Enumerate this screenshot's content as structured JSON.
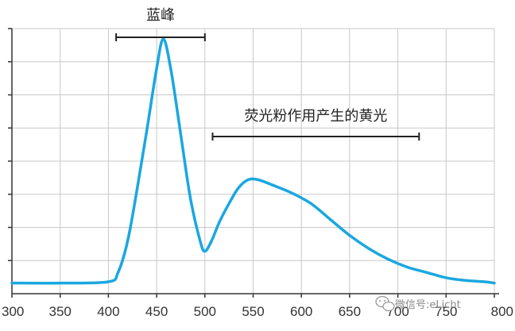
{
  "chart_data": {
    "type": "line",
    "title": "",
    "xlabel": "",
    "ylabel": "",
    "xlim": [
      300,
      800
    ],
    "ylim": [
      0,
      1
    ],
    "x_ticks": [
      "300",
      "350",
      "400",
      "450",
      "500",
      "550",
      "600",
      "650",
      "700",
      "750",
      "800"
    ],
    "grid": true,
    "line_color": "#1aa7e0",
    "series": [
      {
        "x": [
          300,
          350,
          400,
          410,
          420,
          430,
          440,
          450,
          457,
          465,
          475,
          485,
          495,
          500,
          507,
          515,
          525,
          535,
          545,
          555,
          570,
          590,
          610,
          630,
          650,
          670,
          690,
          710,
          730,
          750,
          770,
          790,
          800
        ],
        "y": [
          0.04,
          0.04,
          0.045,
          0.08,
          0.2,
          0.4,
          0.62,
          0.85,
          0.96,
          0.84,
          0.6,
          0.36,
          0.2,
          0.16,
          0.2,
          0.27,
          0.34,
          0.4,
          0.43,
          0.43,
          0.41,
          0.38,
          0.34,
          0.28,
          0.22,
          0.17,
          0.13,
          0.1,
          0.08,
          0.06,
          0.05,
          0.045,
          0.04
        ]
      }
    ],
    "annotations": [
      {
        "label": "蓝峰",
        "x_start": 408,
        "x_end": 500
      },
      {
        "label": "荧光粉作用产生的黄光",
        "x_start": 508,
        "x_end": 722
      }
    ]
  },
  "watermark": {
    "icon": "wechat-icon",
    "text": "微信号:eLicht"
  }
}
